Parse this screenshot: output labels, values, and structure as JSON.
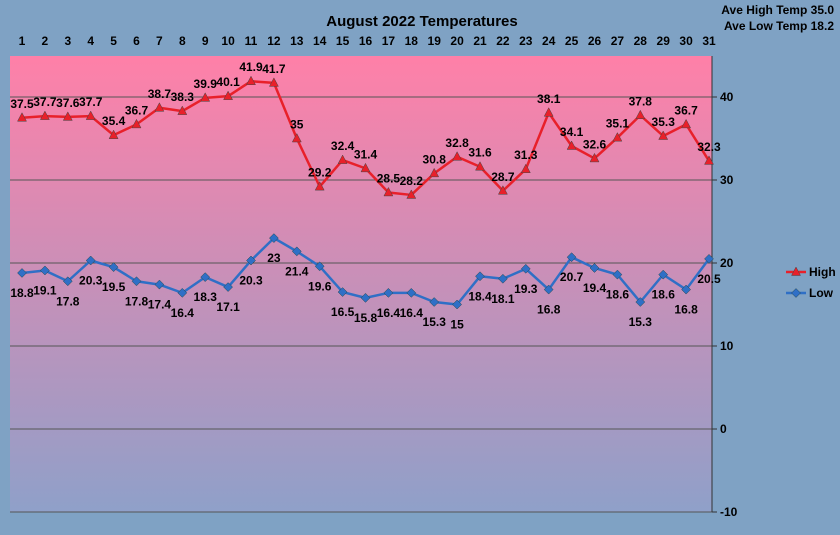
{
  "colors": {
    "background": "#7fa2c4",
    "plot_top": "#ff80a8",
    "plot_bottom": "#8fa0c9",
    "high": "#e8202a",
    "low": "#2f6fc6",
    "grid": "#555555"
  },
  "chart_data": {
    "type": "line",
    "title": "August 2022 Temperatures",
    "stats": [
      "Ave High Temp 35.0",
      "Ave Low Temp 18.2"
    ],
    "x": [
      "1",
      "2",
      "3",
      "4",
      "5",
      "6",
      "7",
      "8",
      "9",
      "10",
      "11",
      "12",
      "13",
      "14",
      "15",
      "16",
      "17",
      "18",
      "19",
      "20",
      "21",
      "22",
      "23",
      "24",
      "25",
      "26",
      "27",
      "28",
      "29",
      "30",
      "31"
    ],
    "x_axis_position": "top",
    "y_axis_position": "right",
    "ylim": [
      -10,
      45
    ],
    "yticks": [
      -10,
      0,
      10,
      20,
      30,
      40
    ],
    "grid": true,
    "legend_position": "right",
    "series": [
      {
        "name": "High",
        "color": "#e8202a",
        "marker": "triangle",
        "values": [
          37.5,
          37.7,
          37.6,
          37.7,
          35.4,
          36.7,
          38.7,
          38.3,
          39.9,
          40.1,
          41.9,
          41.7,
          35,
          29.2,
          32.4,
          31.4,
          28.5,
          28.2,
          30.8,
          32.8,
          31.6,
          28.7,
          31.3,
          38.1,
          34.1,
          32.6,
          35.1,
          37.8,
          35.3,
          36.7,
          32.3
        ],
        "labels": [
          "37.5",
          "37.7",
          "37.6",
          "37.7",
          "35.4",
          "36.7",
          "38.7",
          "38.3",
          "39.9",
          "40.1",
          "41.9",
          "41.7",
          "35",
          "29.2",
          "32.4",
          "31.4",
          "28.5",
          "28.2",
          "30.8",
          "32.8",
          "31.6",
          "28.7",
          "31.3",
          "38.1",
          "34.1",
          "32.6",
          "35.1",
          "37.8",
          "35.3",
          "36.7",
          "32.3"
        ]
      },
      {
        "name": "Low",
        "color": "#2f6fc6",
        "marker": "diamond",
        "values": [
          18.8,
          19.1,
          17.8,
          20.3,
          19.5,
          17.8,
          17.4,
          16.4,
          18.3,
          17.1,
          20.3,
          23,
          21.4,
          19.6,
          16.5,
          15.8,
          16.4,
          16.4,
          15.3,
          15,
          18.4,
          18.1,
          19.3,
          16.8,
          20.7,
          19.4,
          18.6,
          15.3,
          18.6,
          16.8,
          20.5
        ],
        "labels": [
          "18.8",
          "19.1",
          "17.8",
          "20.3",
          "19.5",
          "17.8",
          "17.4",
          "16.4",
          "18.3",
          "17.1",
          "20.3",
          "23",
          "21.4",
          "19.6",
          "16.5",
          "15.8",
          "16.4",
          "16.4",
          "15.3",
          "15",
          "18.4",
          "18.1",
          "19.3",
          "16.8",
          "20.7",
          "19.4",
          "18.6",
          "15.3",
          "18.6",
          "16.8",
          "20.5"
        ]
      }
    ]
  }
}
